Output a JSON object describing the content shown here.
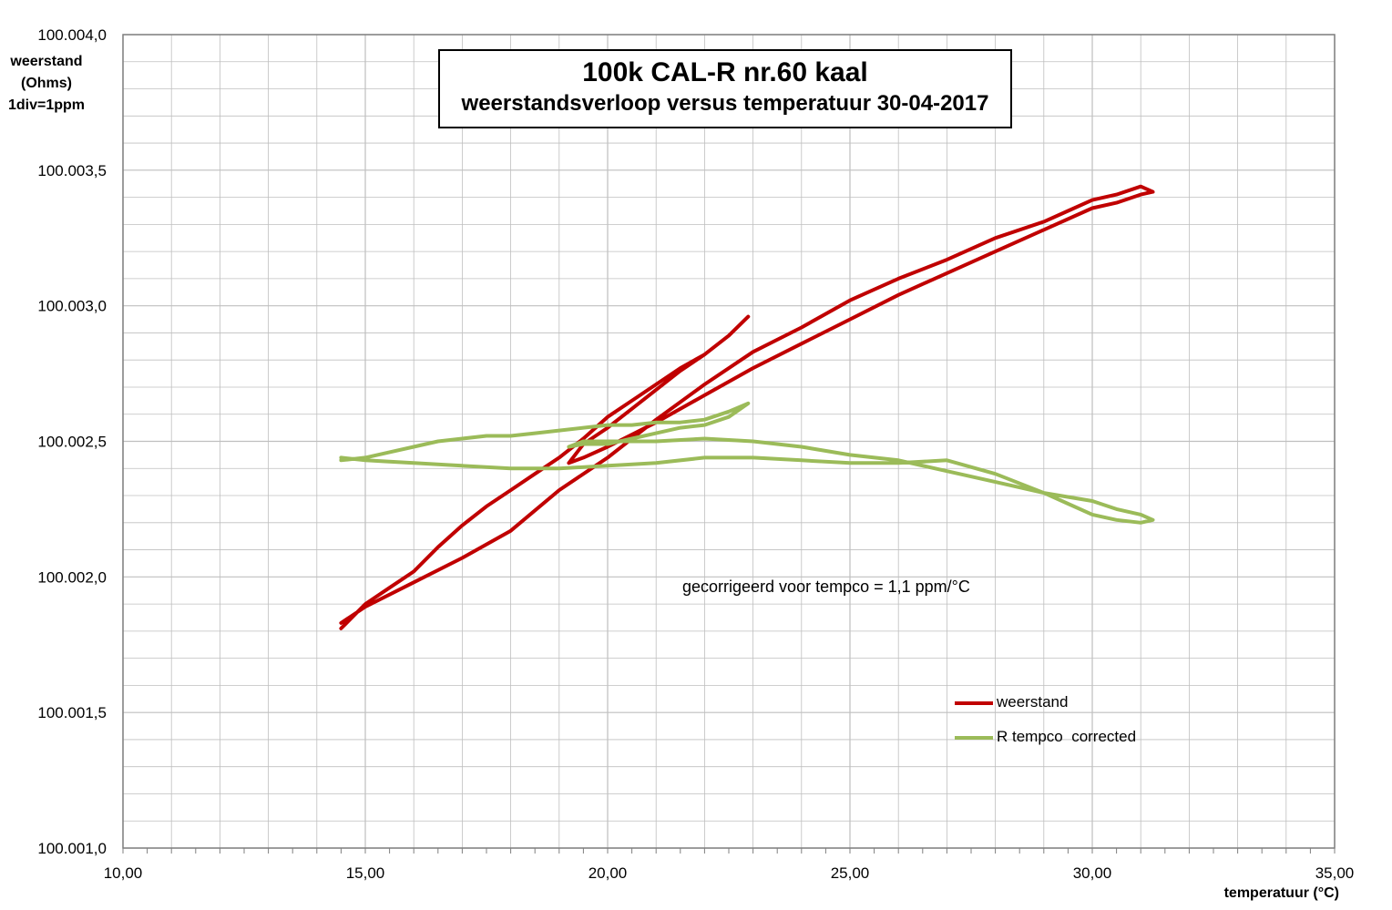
{
  "chart_data": {
    "type": "line",
    "title": "100k CAL-R nr.60 kaal",
    "subtitle": "weerstandsverloop versus temperatuur 30-04-2017",
    "ylabel": [
      "weerstand",
      "(Ohms)",
      "1div=1ppm"
    ],
    "xlabel": "temperatuur (°C)",
    "xlim": [
      10,
      35
    ],
    "ylim": [
      100.001,
      100.004
    ],
    "x_ticks": [
      "10,00",
      "15,00",
      "20,00",
      "25,00",
      "30,00",
      "35,00"
    ],
    "y_ticks": [
      "100.001,0",
      "100.001,5",
      "100.002,0",
      "100.002,5",
      "100.003,0",
      "100.003,5",
      "100.004,0"
    ],
    "grid": true,
    "legend_position": "bottom-right",
    "annotation": "gecorrigeerd voor tempco = 1,1 ppm/°C",
    "series": [
      {
        "name": "weerstand",
        "color": "#c00000",
        "x": [
          14.5,
          15.0,
          15.5,
          16.0,
          16.5,
          17.0,
          17.5,
          18.0,
          18.5,
          19.0,
          19.5,
          20.0,
          20.5,
          21.0,
          21.5,
          22.0,
          22.5,
          22.9,
          22.5,
          22.0,
          21.5,
          21.0,
          20.5,
          20.0,
          19.5,
          19.2,
          19.5,
          20.0,
          21.0,
          22.0,
          23.0,
          24.0,
          25.0,
          26.0,
          27.0,
          28.0,
          29.0,
          30.0,
          30.5,
          31.0,
          31.25,
          31.0,
          30.5,
          30.0,
          29.5,
          29.0,
          28.0,
          27.0,
          26.0,
          25.0,
          24.0,
          23.0,
          22.0,
          21.0,
          20.0,
          19.0,
          18.0,
          17.0,
          16.0,
          15.0,
          14.5
        ],
        "y": [
          100.00181,
          100.0019,
          100.00196,
          100.00202,
          100.00211,
          100.00219,
          100.00226,
          100.00232,
          100.00238,
          100.00244,
          100.00251,
          100.00259,
          100.00265,
          100.00271,
          100.00277,
          100.00282,
          100.00289,
          100.00296,
          100.00289,
          100.00282,
          100.00276,
          100.00269,
          100.00262,
          100.00255,
          100.00249,
          100.00242,
          100.00244,
          100.00248,
          100.00257,
          100.00267,
          100.00277,
          100.00286,
          100.00295,
          100.00304,
          100.00312,
          100.0032,
          100.00328,
          100.00336,
          100.00338,
          100.00341,
          100.00342,
          100.00344,
          100.00341,
          100.00339,
          100.00335,
          100.00331,
          100.00325,
          100.00317,
          100.0031,
          100.00302,
          100.00292,
          100.00283,
          100.00271,
          100.00258,
          100.00244,
          100.00232,
          100.00217,
          100.00207,
          100.00198,
          100.00189,
          100.00183
        ]
      },
      {
        "name": "R tempco  corrected",
        "color": "#9bbb59",
        "x": [
          14.5,
          15.0,
          15.5,
          16.0,
          16.5,
          17.0,
          17.5,
          18.0,
          18.5,
          19.0,
          19.5,
          20.0,
          20.5,
          21.0,
          21.5,
          22.0,
          22.5,
          22.9,
          22.5,
          22.0,
          21.5,
          21.0,
          20.5,
          20.0,
          19.5,
          19.2,
          19.5,
          20.0,
          21.0,
          22.0,
          23.0,
          24.0,
          25.0,
          26.0,
          27.0,
          28.0,
          29.0,
          30.0,
          30.5,
          31.0,
          31.25,
          31.0,
          30.5,
          30.0,
          29.5,
          29.0,
          28.0,
          27.0,
          26.0,
          25.0,
          24.0,
          23.0,
          22.0,
          21.0,
          20.0,
          19.0,
          18.0,
          17.0,
          16.0,
          15.0,
          14.5
        ],
        "y": [
          100.00243,
          100.00244,
          100.00246,
          100.00248,
          100.0025,
          100.00251,
          100.00252,
          100.00252,
          100.00253,
          100.00254,
          100.00255,
          100.00256,
          100.00256,
          100.00257,
          100.00257,
          100.00258,
          100.00261,
          100.00264,
          100.00259,
          100.00256,
          100.00255,
          100.00253,
          100.00251,
          100.00249,
          100.00249,
          100.00248,
          100.0025,
          100.0025,
          100.0025,
          100.00251,
          100.0025,
          100.00248,
          100.00245,
          100.00243,
          100.00239,
          100.00235,
          100.00231,
          100.00228,
          100.00225,
          100.00223,
          100.00221,
          100.0022,
          100.00221,
          100.00223,
          100.00227,
          100.00231,
          100.00238,
          100.00243,
          100.00242,
          100.00242,
          100.00243,
          100.00244,
          100.00244,
          100.00242,
          100.00241,
          100.0024,
          100.0024,
          100.00241,
          100.00242,
          100.00243,
          100.00244
        ]
      }
    ]
  }
}
